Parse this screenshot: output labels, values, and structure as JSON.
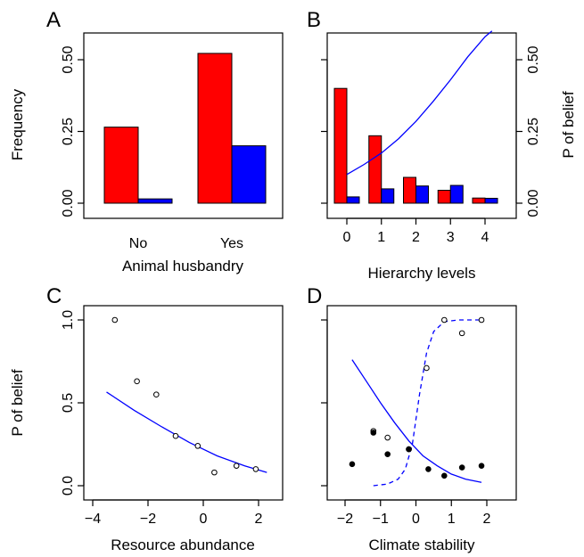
{
  "chart_data": [
    {
      "panel_label": "A",
      "type": "bar",
      "xlabel": "Animal husbandry",
      "ylabel": "Frequency",
      "categories": [
        "No",
        "Yes"
      ],
      "series": [
        {
          "color": "#ff0000",
          "values": [
            0.265,
            0.522
          ]
        },
        {
          "color": "#0000ff",
          "values": [
            0.015,
            0.2
          ]
        }
      ],
      "ylim": [
        0,
        0.5
      ],
      "yticks": [
        "0.00",
        "0.25",
        "0.50"
      ],
      "grid": false
    },
    {
      "panel_label": "B",
      "type": "bar",
      "xlabel": "Hierarchy levels",
      "ylabel": "P of belief",
      "categories": [
        "0",
        "1",
        "2",
        "3",
        "4"
      ],
      "series": [
        {
          "color": "#ff0000",
          "values": [
            0.4,
            0.235,
            0.09,
            0.045,
            0.018
          ]
        },
        {
          "color": "#0000ff",
          "values": [
            0.022,
            0.05,
            0.06,
            0.062,
            0.017
          ]
        }
      ],
      "curve": {
        "color": "#0000ff",
        "x": [
          0,
          0.5,
          1,
          1.5,
          2,
          2.5,
          3,
          3.5,
          4,
          4.2
        ],
        "y": [
          0.1,
          0.135,
          0.175,
          0.225,
          0.285,
          0.355,
          0.43,
          0.51,
          0.58,
          0.6
        ]
      },
      "ylim": [
        0,
        0.5
      ],
      "yticks": [
        "0.00",
        "0.25",
        "0.50"
      ],
      "grid": false
    },
    {
      "panel_label": "C",
      "type": "scatter",
      "xlabel": "Resource abundance",
      "ylabel": "P of belief",
      "points": {
        "x": [
          -3.2,
          -2.4,
          -1.7,
          -1.0,
          -0.2,
          0.4,
          1.2,
          1.9
        ],
        "y": [
          1.0,
          0.63,
          0.55,
          0.3,
          0.24,
          0.08,
          0.12,
          0.1
        ]
      },
      "curve": {
        "color": "#0000ff",
        "x": [
          -3.5,
          -2.5,
          -1.5,
          -0.5,
          0.5,
          1.5,
          2.3
        ],
        "y": [
          0.565,
          0.455,
          0.355,
          0.26,
          0.18,
          0.12,
          0.08
        ]
      },
      "xlim": [
        -4,
        2
      ],
      "ylim": [
        0,
        1
      ],
      "xticks": [
        "−4",
        "−2",
        "0",
        "2"
      ],
      "yticks": [
        "0.0",
        "0.5",
        "1.0"
      ],
      "grid": false
    },
    {
      "panel_label": "D",
      "type": "scatter",
      "xlabel": "Climate stability",
      "ylabel": "",
      "open_points": {
        "x": [
          -1.2,
          -0.8,
          -0.2,
          0.3,
          0.8,
          1.3,
          1.85
        ],
        "y": [
          0.33,
          0.29,
          0.22,
          0.71,
          1.0,
          0.92,
          1.0
        ]
      },
      "filled_points": {
        "x": [
          -1.8,
          -1.2,
          -0.8,
          -0.2,
          0.35,
          0.8,
          1.3,
          1.85
        ],
        "y": [
          0.13,
          0.32,
          0.19,
          0.22,
          0.1,
          0.06,
          0.11,
          0.12
        ]
      },
      "solid_curve": {
        "color": "#0000ff",
        "x": [
          -1.8,
          -1.4,
          -1.0,
          -0.6,
          -0.2,
          0.2,
          0.6,
          1.0,
          1.4,
          1.85
        ],
        "y": [
          0.76,
          0.63,
          0.5,
          0.38,
          0.27,
          0.18,
          0.12,
          0.07,
          0.04,
          0.02
        ]
      },
      "dashed_curve": {
        "color": "#0000ff",
        "x": [
          -1.2,
          -0.8,
          -0.5,
          -0.3,
          -0.1,
          0.0,
          0.1,
          0.3,
          0.5,
          0.8,
          1.2,
          1.85
        ],
        "y": [
          0.0,
          0.01,
          0.04,
          0.1,
          0.25,
          0.4,
          0.55,
          0.8,
          0.93,
          0.99,
          1.0,
          1.0
        ]
      },
      "xlim": [
        -2,
        2
      ],
      "ylim": [
        0,
        1
      ],
      "xticks": [
        "−2",
        "−1",
        "0",
        "1",
        "2"
      ],
      "grid": false
    }
  ]
}
